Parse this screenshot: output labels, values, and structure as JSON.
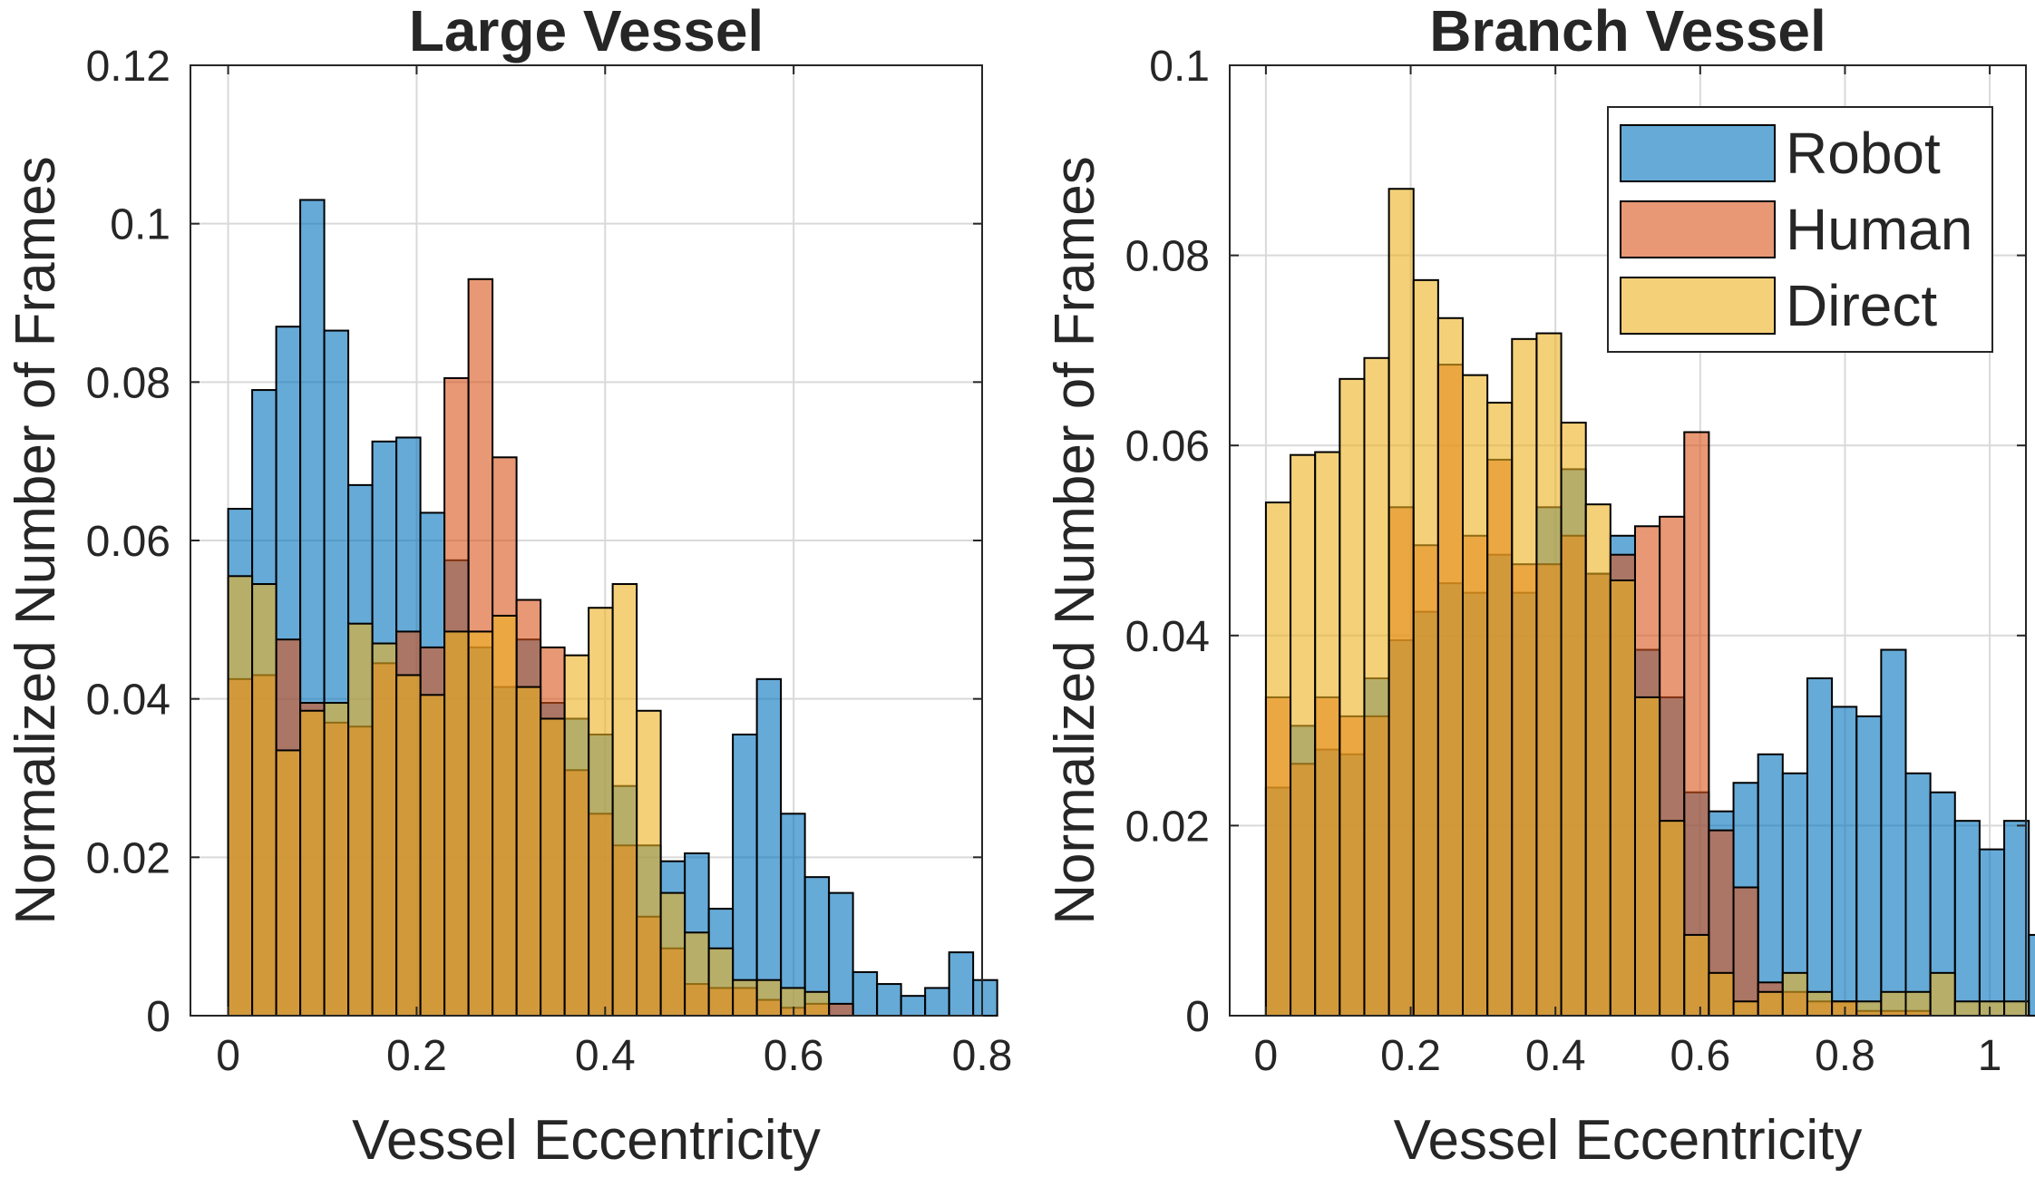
{
  "chart_data": [
    {
      "type": "bar",
      "title": "Large Vessel",
      "xlabel": "Vessel Eccentricity",
      "ylabel": "Normalized Number of Frames",
      "xlim": [
        -0.04,
        0.8
      ],
      "ylim": [
        0,
        0.12
      ],
      "xticks": [
        0,
        0.2,
        0.4,
        0.6,
        0.8
      ],
      "xtick_labels": [
        "0",
        "0.2",
        "0.4",
        "0.6",
        "0.8"
      ],
      "yticks": [
        0,
        0.02,
        0.04,
        0.06,
        0.08,
        0.1,
        0.12
      ],
      "ytick_labels": [
        "0",
        "0.02",
        "0.04",
        "0.06",
        "0.08",
        "0.1",
        "0.12"
      ],
      "grid": true,
      "bin_start": 0,
      "bin_width": 0.0255,
      "series": [
        {
          "name": "Robot",
          "color": "#0072BD",
          "values": [
            0.064,
            0.079,
            0.087,
            0.103,
            0.0865,
            0.067,
            0.0725,
            0.073,
            0.0635,
            0.0575,
            0.0465,
            0.0415,
            0.0475,
            0.0395,
            0.0375,
            0.0355,
            0.029,
            0.0215,
            0.0195,
            0.0205,
            0.0135,
            0.0355,
            0.0425,
            0.0255,
            0.0175,
            0.0155,
            0.0055,
            0.004,
            0.0025,
            0.0035,
            0.008,
            0.0045
          ]
        },
        {
          "name": "Human",
          "color": "#D95319",
          "values": [
            0.0425,
            0.043,
            0.0475,
            0.0395,
            0.037,
            0.0365,
            0.0445,
            0.0485,
            0.0465,
            0.0805,
            0.093,
            0.0705,
            0.0525,
            0.0465,
            0.031,
            0.0255,
            0.0215,
            0.0125,
            0.0085,
            0.004,
            0.0035,
            0.0035,
            0.002,
            0.001,
            0.0015,
            0.0015
          ]
        },
        {
          "name": "Direct",
          "color": "#EDB120",
          "values": [
            0.0555,
            0.0545,
            0.0335,
            0.0385,
            0.0395,
            0.0495,
            0.047,
            0.043,
            0.0405,
            0.0485,
            0.0485,
            0.0505,
            0.0415,
            0.0375,
            0.0455,
            0.0515,
            0.0545,
            0.0385,
            0.0155,
            0.0105,
            0.0085,
            0.0045,
            0.0045,
            0.0035,
            0.003
          ]
        }
      ]
    },
    {
      "type": "bar",
      "title": "Branch Vessel",
      "xlabel": "Vessel Eccentricity",
      "ylabel": "Normalized Number of Frames",
      "xlim": [
        -0.05,
        1.05
      ],
      "ylim": [
        0,
        0.1
      ],
      "xticks": [
        0,
        0.2,
        0.4,
        0.6,
        0.8,
        1
      ],
      "xtick_labels": [
        "0",
        "0.2",
        "0.4",
        "0.6",
        "0.8",
        "1"
      ],
      "yticks": [
        0,
        0.02,
        0.04,
        0.06,
        0.08,
        0.1
      ],
      "ytick_labels": [
        "0",
        "0.02",
        "0.04",
        "0.06",
        "0.08",
        "0.1"
      ],
      "grid": true,
      "legend_position": "top-right",
      "bin_start": 0,
      "bin_width": 0.034,
      "series": [
        {
          "name": "Robot",
          "color": "#0072BD",
          "values": [
            0.024,
            0.0305,
            0.028,
            0.0275,
            0.0355,
            0.0395,
            0.0425,
            0.0455,
            0.0445,
            0.0485,
            0.0445,
            0.0535,
            0.0575,
            0.0465,
            0.0505,
            0.0385,
            0.0335,
            0.0235,
            0.0215,
            0.0245,
            0.0275,
            0.0255,
            0.0355,
            0.0325,
            0.0315,
            0.0385,
            0.0255,
            0.0235,
            0.0205,
            0.0175,
            0.0205,
            0.0085
          ]
        },
        {
          "name": "Human",
          "color": "#D95319",
          "values": [
            0.0335,
            0.0265,
            0.0335,
            0.0315,
            0.0315,
            0.0535,
            0.0495,
            0.0685,
            0.0505,
            0.0585,
            0.0475,
            0.0475,
            0.0505,
            0.0465,
            0.0485,
            0.0515,
            0.0525,
            0.0614,
            0.0195,
            0.0135,
            0.0035,
            0.0025,
            0.0015,
            0.0015,
            0.0005,
            0.0005,
            0.0005
          ]
        },
        {
          "name": "Direct",
          "color": "#EDB120",
          "values": [
            0.054,
            0.059,
            0.0593,
            0.067,
            0.0692,
            0.087,
            0.0774,
            0.0734,
            0.0674,
            0.0645,
            0.0712,
            0.0718,
            0.0624,
            0.0538,
            0.0458,
            0.0335,
            0.0205,
            0.0085,
            0.0045,
            0.0015,
            0.0025,
            0.0045,
            0.0025,
            0.0015,
            0.0015,
            0.0025,
            0.0025,
            0.0045,
            0.0015,
            0.0015,
            0.0015
          ]
        }
      ]
    }
  ]
}
